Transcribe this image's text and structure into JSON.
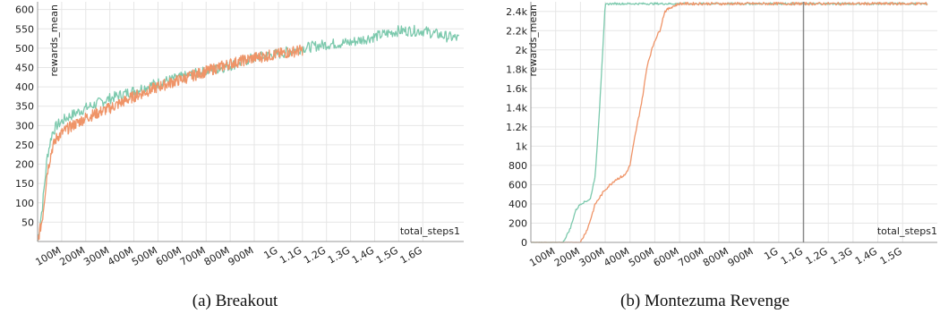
{
  "colors": {
    "series_a": "#7cc9ad",
    "series_b": "#ef9468",
    "grid": "#e6e6e6",
    "axis": "#999999",
    "marker": "#888888"
  },
  "captions": [
    "(a) Breakout",
    "(b) Montezuma Revenge"
  ],
  "chart_data": [
    {
      "type": "line",
      "caption": "(a) Breakout",
      "ylabel": "rewards_mean",
      "xlabel": "total_steps1",
      "xlim": [
        0,
        1770000000
      ],
      "ylim": [
        0,
        620
      ],
      "y_ticks": [
        50,
        100,
        150,
        200,
        250,
        300,
        350,
        400,
        450,
        500,
        550,
        600
      ],
      "y_tick_labels": [
        "50",
        "100",
        "150",
        "200",
        "250",
        "300",
        "350",
        "400",
        "450",
        "500",
        "550",
        "600"
      ],
      "x_ticks": [
        100000000,
        200000000,
        300000000,
        400000000,
        500000000,
        600000000,
        700000000,
        800000000,
        900000000,
        1000000000,
        1100000000,
        1200000000,
        1300000000,
        1400000000,
        1500000000,
        1600000000
      ],
      "x_tick_labels": [
        "100M",
        "200M",
        "300M",
        "400M",
        "500M",
        "600M",
        "700M",
        "800M",
        "900M",
        "1G",
        "1.1G",
        "1.2G",
        "1.3G",
        "1.4G",
        "1.5G",
        "1.6G"
      ],
      "grid": true,
      "series": [
        {
          "color": "#7cc9ad",
          "noise": 14,
          "x": [
            0,
            20000000,
            40000000,
            60000000,
            80000000,
            120000000,
            200000000,
            300000000,
            400000000,
            500000000,
            600000000,
            700000000,
            800000000,
            900000000,
            1000000000,
            1100000000,
            1200000000,
            1300000000,
            1400000000,
            1500000000,
            1600000000,
            1700000000,
            1750000000
          ],
          "values": [
            0,
            90,
            220,
            280,
            300,
            320,
            345,
            370,
            390,
            410,
            425,
            440,
            455,
            475,
            485,
            500,
            510,
            515,
            530,
            545,
            545,
            530,
            525
          ]
        },
        {
          "color": "#ef9468",
          "noise": 15,
          "x": [
            0,
            20000000,
            40000000,
            60000000,
            80000000,
            120000000,
            200000000,
            300000000,
            400000000,
            500000000,
            600000000,
            700000000,
            800000000,
            900000000,
            1000000000,
            1100000000
          ],
          "values": [
            0,
            60,
            180,
            240,
            270,
            290,
            320,
            345,
            375,
            400,
            420,
            440,
            460,
            475,
            485,
            495
          ]
        }
      ]
    },
    {
      "type": "line",
      "caption": "(b) Montezuma Revenge",
      "ylabel": "rewards_mean",
      "xlabel": "total_steps1",
      "xlim": [
        0,
        1640000000
      ],
      "ylim": [
        0,
        2500
      ],
      "y_ticks": [
        0,
        200,
        400,
        600,
        800,
        1000,
        1200,
        1400,
        1600,
        1800,
        2000,
        2200,
        2400
      ],
      "y_tick_labels": [
        "0",
        "200",
        "400",
        "600",
        "800",
        "1k",
        "1.2k",
        "1.4k",
        "1.6k",
        "1.8k",
        "2k",
        "2.2k",
        "2.4k"
      ],
      "x_ticks": [
        100000000,
        200000000,
        300000000,
        400000000,
        500000000,
        600000000,
        700000000,
        800000000,
        900000000,
        1000000000,
        1100000000,
        1200000000,
        1300000000,
        1400000000,
        1500000000
      ],
      "x_tick_labels": [
        "100M",
        "200M",
        "300M",
        "400M",
        "500M",
        "600M",
        "700M",
        "800M",
        "900M",
        "1G",
        "1.1G",
        "1.2G",
        "1.3G",
        "1.4G",
        "1.5G"
      ],
      "marker_x": 1100000000,
      "grid": true,
      "series": [
        {
          "color": "#7cc9ad",
          "noise": 10,
          "x": [
            0,
            100000000,
            130000000,
            160000000,
            180000000,
            200000000,
            240000000,
            260000000,
            275000000,
            290000000,
            300000000,
            320000000,
            350000000,
            500000000,
            800000000,
            1000000000,
            1200000000,
            1400000000,
            1600000000
          ],
          "values": [
            0,
            0,
            0,
            150,
            330,
            400,
            450,
            700,
            1300,
            2000,
            2470,
            2480,
            2480,
            2480,
            2480,
            2480,
            2480,
            2480,
            2480
          ]
        },
        {
          "color": "#ef9468",
          "noise": 14,
          "x": [
            0,
            200000000,
            230000000,
            260000000,
            300000000,
            340000000,
            380000000,
            400000000,
            420000000,
            450000000,
            470000000,
            500000000,
            520000000,
            540000000,
            570000000,
            600000000,
            800000000,
            1000000000,
            1200000000,
            1400000000,
            1600000000
          ],
          "values": [
            0,
            0,
            150,
            400,
            550,
            650,
            700,
            800,
            1100,
            1500,
            1850,
            2100,
            2200,
            2400,
            2450,
            2480,
            2480,
            2480,
            2480,
            2480,
            2480
          ]
        }
      ]
    }
  ]
}
